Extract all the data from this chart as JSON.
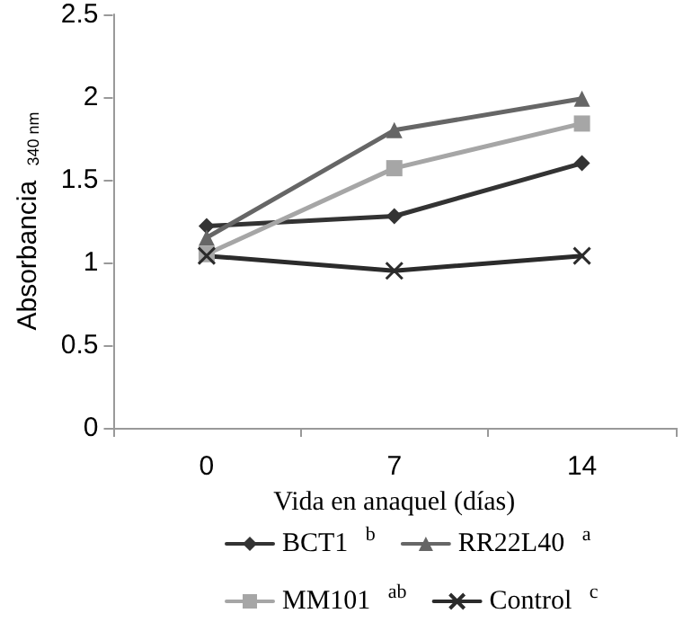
{
  "chart_data": {
    "type": "line",
    "xlabel": "Vida en anaquel (días)",
    "ylabel": "Absorbancia $_{340 nm}$",
    "categories": [
      "0",
      "7",
      "14"
    ],
    "ylim": [
      0,
      2.5
    ],
    "yticks": [
      0,
      0.5,
      1,
      1.5,
      2,
      2.5
    ],
    "grid": false,
    "legend": "bottom",
    "line_style": "solid",
    "series": [
      {
        "name": "BCT1 $^{b}$",
        "color": "#333333",
        "marker": "diamond",
        "values": [
          1.22,
          1.28,
          1.6
        ]
      },
      {
        "name": "RR22L40 $^{a}$",
        "color": "#666666",
        "marker": "triangle",
        "values": [
          1.15,
          1.8,
          1.99
        ]
      },
      {
        "name": "MM101 $^{ab}$",
        "color": "#a6a6a6",
        "marker": "square",
        "values": [
          1.05,
          1.57,
          1.84
        ]
      },
      {
        "name": "Control $^{c}$",
        "color": "#2b2b2b",
        "marker": "cross",
        "values": [
          1.04,
          0.95,
          1.04
        ]
      }
    ]
  }
}
